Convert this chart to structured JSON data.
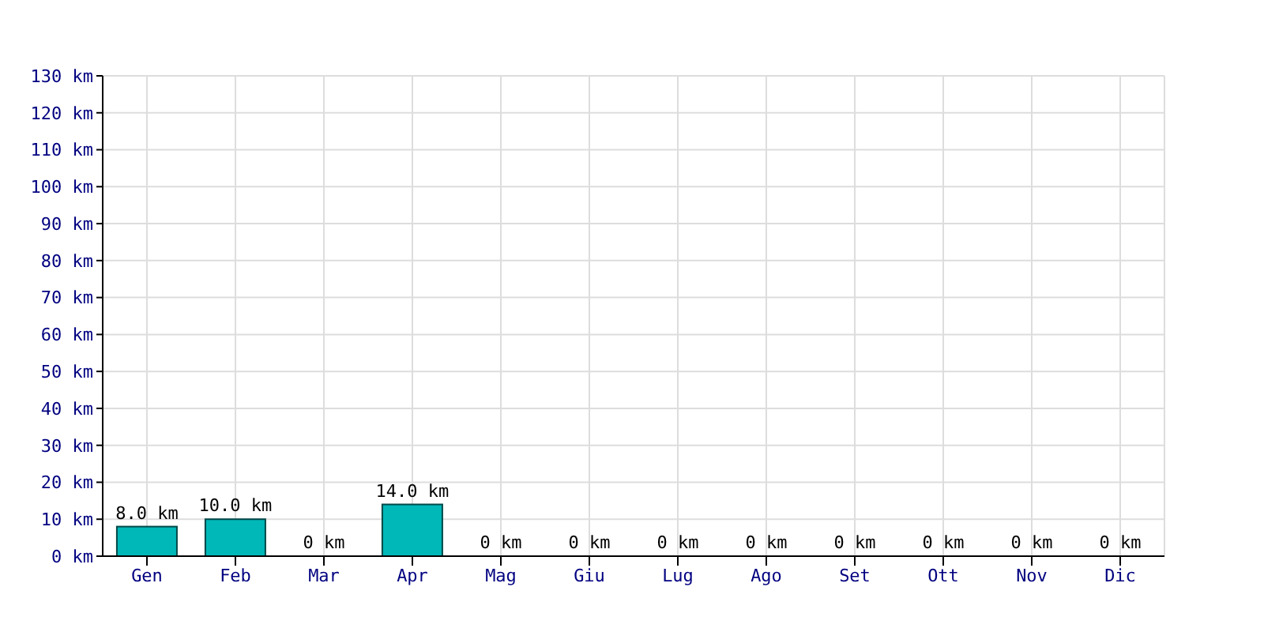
{
  "chart_data": {
    "type": "bar",
    "categories": [
      "Gen",
      "Feb",
      "Mar",
      "Apr",
      "Mag",
      "Giu",
      "Lug",
      "Ago",
      "Set",
      "Ott",
      "Nov",
      "Dic"
    ],
    "values": [
      8,
      10,
      0,
      14,
      0,
      0,
      0,
      0,
      0,
      0,
      0,
      0
    ],
    "value_labels": [
      "8.0 km",
      "10.0 km",
      "0 km",
      "14.0 km",
      "0 km",
      "0 km",
      "0 km",
      "0 km",
      "0 km",
      "0 km",
      "0 km",
      "0 km"
    ],
    "color": "#00b8b8",
    "ylim": [
      0,
      130
    ],
    "yticks": [
      {
        "value": 0,
        "label": "0 km"
      },
      {
        "value": 10,
        "label": "10 km"
      },
      {
        "value": 20,
        "label": "20 km"
      },
      {
        "value": 30,
        "label": "30 km"
      },
      {
        "value": 40,
        "label": "40 km"
      },
      {
        "value": 50,
        "label": "50 km"
      },
      {
        "value": 60,
        "label": "60 km"
      },
      {
        "value": 70,
        "label": "70 km"
      },
      {
        "value": 80,
        "label": "80 km"
      },
      {
        "value": 90,
        "label": "90 km"
      },
      {
        "value": 100,
        "label": "100 km"
      },
      {
        "value": 110,
        "label": "110 km"
      },
      {
        "value": 120,
        "label": "120 km"
      },
      {
        "value": 130,
        "label": "130 km"
      }
    ],
    "grid": true
  }
}
